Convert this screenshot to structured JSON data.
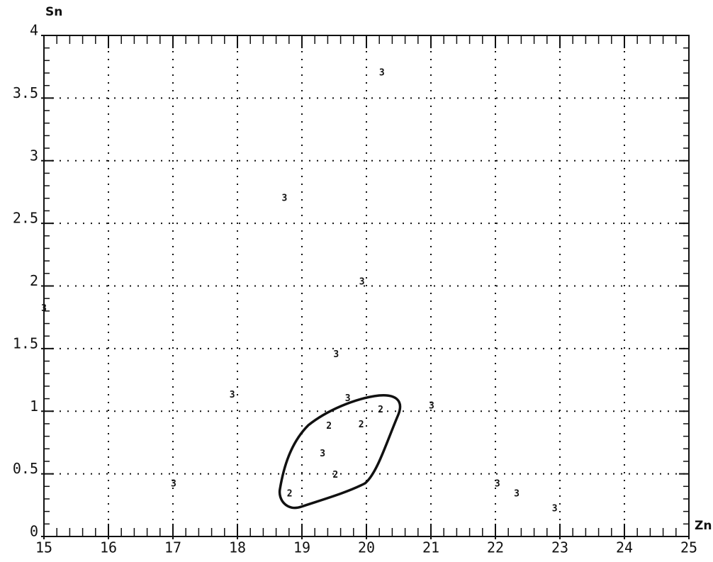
{
  "chart_data": {
    "type": "scatter",
    "y_label": "Sn",
    "x_label": "Zn",
    "xlim": [
      15,
      25
    ],
    "ylim": [
      0,
      4
    ],
    "xticks": [
      15,
      16,
      17,
      18,
      19,
      20,
      21,
      22,
      23,
      24,
      25
    ],
    "yticks": [
      0,
      0.5,
      1,
      1.5,
      2,
      2.5,
      3,
      3.5,
      4
    ],
    "grid": true,
    "color": "#111111",
    "series": [
      {
        "name": "3",
        "x": [
          20.24,
          18.73,
          19.93,
          15,
          19.53,
          17.92,
          19.71,
          21.01,
          17.01,
          22.03,
          22.33,
          22.92,
          19.32
        ],
        "values": [
          3.7,
          2.7,
          2.03,
          1.82,
          1.45,
          1.13,
          1.1,
          1.04,
          0.42,
          0.42,
          0.34,
          0.22,
          0.66
        ]
      },
      {
        "name": "2",
        "x": [
          20.22,
          19.42,
          19.92,
          19.52,
          18.81
        ],
        "values": [
          1.01,
          0.88,
          0.89,
          0.49,
          0.34
        ]
      }
    ]
  }
}
